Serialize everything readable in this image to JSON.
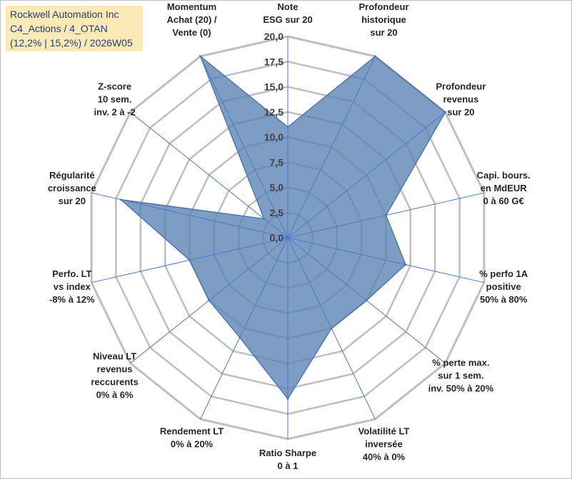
{
  "title_box": {
    "line1": "Rockwell Automation Inc",
    "line2": "C4_Actions / 4_OTAN",
    "line3": "(12,2% | 15,2%) / 2026W05"
  },
  "chart_data": {
    "type": "radar",
    "title": "Rockwell Automation Inc",
    "r_range": [
      0,
      20
    ],
    "ticks": [
      "0,0",
      "2,5",
      "5,0",
      "7,5",
      "10,0",
      "12,5",
      "15,0",
      "17,5",
      "20,0"
    ],
    "grid": true,
    "axes": [
      [
        "Note",
        "ESG sur 20"
      ],
      [
        "Profondeur",
        "historique",
        "sur 20"
      ],
      [
        "Profondeur",
        "revenus",
        "sur 20"
      ],
      [
        "Capi. bours.",
        "en MdEUR",
        "0 à 60 G€"
      ],
      [
        "% perfo 1A",
        "positive",
        "50% à 80%"
      ],
      [
        "% perte max.",
        "sur 1 sem.",
        "inv. 50% à 20%"
      ],
      [
        "Volatilité LT",
        "inversée",
        "40% à 0%"
      ],
      [
        "Ratio Sharpe",
        "0 à 1"
      ],
      [
        "Rendement LT",
        "0% à 20%"
      ],
      [
        "Niveau LT",
        "revenus",
        "reccurents",
        "0% à 6%"
      ],
      [
        "Perfo. LT",
        "vs index",
        "-8% à 12%"
      ],
      [
        "Régularité",
        "croissance",
        "sur 20"
      ],
      [
        "Z-score",
        "10 sem.",
        "inv. 2 à -2"
      ],
      [
        "Momentum",
        "Achat (20) /",
        "Vente (0)"
      ]
    ],
    "series": [
      {
        "name": "Rockwell Automation Inc",
        "values": [
          11,
          20,
          20,
          10,
          12,
          10,
          10,
          16,
          11,
          10,
          10,
          17,
          3,
          20
        ]
      }
    ],
    "colors": {
      "fill": "#5a82b3",
      "stroke": "#4f77ad",
      "grid": "#bfbfbf",
      "spoke": "#4a7ac8"
    }
  }
}
